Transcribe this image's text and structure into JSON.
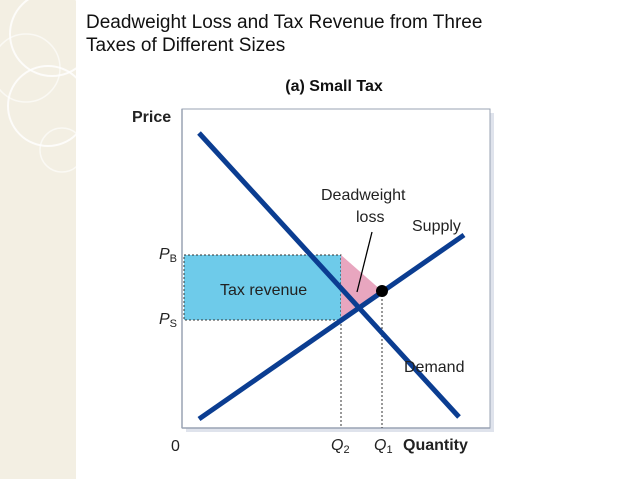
{
  "title": {
    "line1": "Deadweight Loss and Tax Revenue from Three",
    "line2": "Taxes of Different Sizes"
  },
  "subtitle": "(a) Small Tax",
  "axes": {
    "y_label": "Price",
    "x_label": "Quantity",
    "origin": "0"
  },
  "price_labels": {
    "pb": {
      "main": "P",
      "sub": "B"
    },
    "ps": {
      "main": "P",
      "sub": "S"
    }
  },
  "quantity_labels": {
    "q2": {
      "main": "Q",
      "sub": "2"
    },
    "q1": {
      "main": "Q",
      "sub": "1"
    }
  },
  "annotations": {
    "tax_revenue": "Tax revenue",
    "deadweight_line1": "Deadweight",
    "deadweight_line2": "loss",
    "supply": "Supply",
    "demand": "Demand"
  },
  "colors": {
    "curve": "#0b3d91",
    "tax_revenue_fill": "#6ecbea",
    "deadweight_fill": "#e8a6bf",
    "sidebar_bg": "#f3efe3",
    "plot_border": "#9aa3b3"
  }
}
